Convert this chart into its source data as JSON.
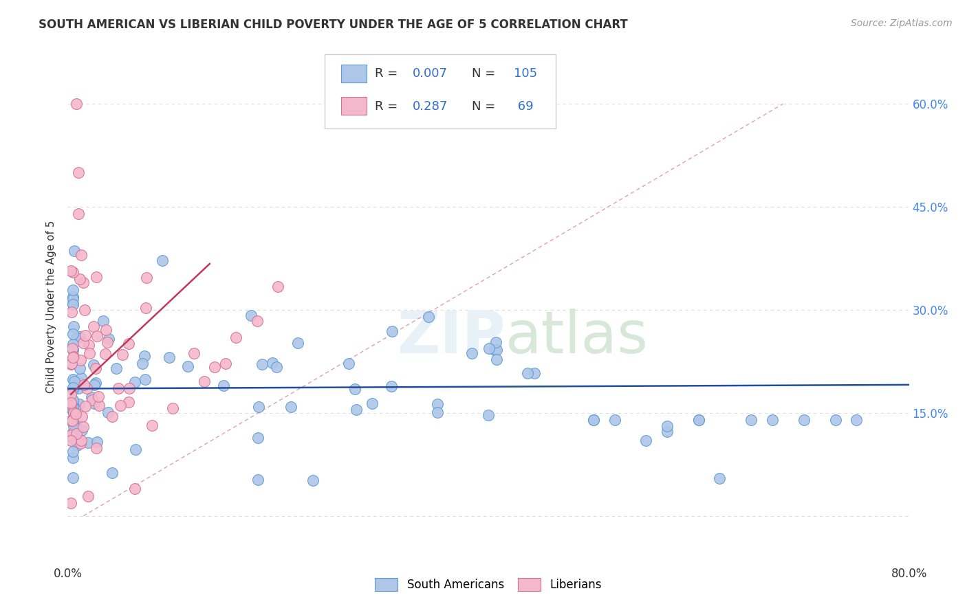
{
  "title": "SOUTH AMERICAN VS LIBERIAN CHILD POVERTY UNDER THE AGE OF 5 CORRELATION CHART",
  "source": "Source: ZipAtlas.com",
  "ylabel": "Child Poverty Under the Age of 5",
  "xlim": [
    0.0,
    0.8
  ],
  "ylim": [
    -0.07,
    0.68
  ],
  "south_american_color": "#aec6e8",
  "south_american_edge": "#5b9bd5",
  "liberian_color": "#f4b8cc",
  "liberian_edge": "#d47090",
  "trend_blue": "#1f4e9c",
  "trend_pink": "#c0385a",
  "trend_diag_color": "#cccccc",
  "legend_R_blue": "0.007",
  "legend_N_blue": "105",
  "legend_R_pink": "0.287",
  "legend_N_pink": "69",
  "background_color": "#ffffff",
  "grid_color": "#dddddd",
  "text_color": "#333333",
  "blue_number_color": "#3070d0",
  "right_axis_color": "#4488ee"
}
